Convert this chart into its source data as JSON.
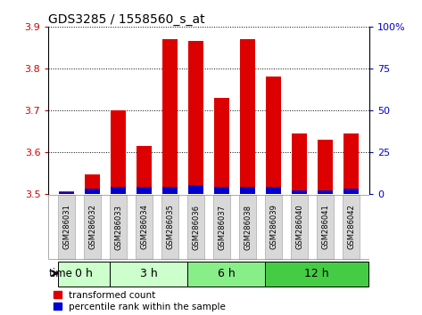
{
  "title": "GDS3285 / 1558560_s_at",
  "samples": [
    "GSM286031",
    "GSM286032",
    "GSM286033",
    "GSM286034",
    "GSM286035",
    "GSM286036",
    "GSM286037",
    "GSM286038",
    "GSM286039",
    "GSM286040",
    "GSM286041",
    "GSM286042"
  ],
  "transformed_count": [
    3.505,
    3.545,
    3.7,
    3.615,
    3.87,
    3.865,
    3.73,
    3.87,
    3.78,
    3.645,
    3.63,
    3.645
  ],
  "percentile_rank": [
    1,
    3,
    4,
    4,
    4,
    5,
    4,
    4,
    4,
    2,
    2,
    3
  ],
  "ylim_left": [
    3.5,
    3.9
  ],
  "ylim_right": [
    0,
    100
  ],
  "yticks_left": [
    3.5,
    3.6,
    3.7,
    3.8,
    3.9
  ],
  "yticks_right": [
    0,
    25,
    50,
    75,
    100
  ],
  "bar_color_red": "#dd0000",
  "bar_color_blue": "#0000cc",
  "group_defs": [
    {
      "start": 0,
      "end": 2,
      "color": "#ccffcc",
      "label": "0 h"
    },
    {
      "start": 2,
      "end": 5,
      "color": "#ccffcc",
      "label": "3 h"
    },
    {
      "start": 5,
      "end": 8,
      "color": "#88ee88",
      "label": "6 h"
    },
    {
      "start": 8,
      "end": 12,
      "color": "#44cc44",
      "label": "12 h"
    }
  ],
  "tick_label_color_left": "#cc0000",
  "tick_label_color_right": "#0000cc",
  "bar_width": 0.6,
  "base_value": 3.5,
  "legend_red": "transformed count",
  "legend_blue": "percentile rank within the sample"
}
